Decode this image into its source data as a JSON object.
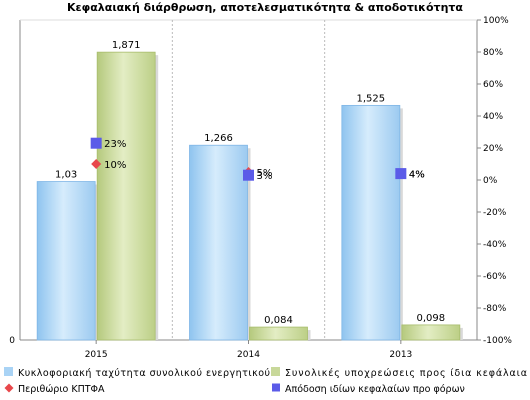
{
  "chart_data": {
    "type": "bar",
    "title": "Κεφαλαιακή διάρθρωση, αποτελεσματικότητα & αποδοτικότητα",
    "categories": [
      "2015",
      "2014",
      "2013"
    ],
    "left_axis": {
      "tick_labels": [
        "0"
      ],
      "ylim": [
        0,
        2.08
      ]
    },
    "right_axis": {
      "ylim": [
        -100,
        100
      ],
      "tick_labels": [
        "100%",
        "80%",
        "60%",
        "40%",
        "20%",
        "0%",
        "-20%",
        "-40%",
        "-60%",
        "-80%",
        "-100%"
      ]
    },
    "bar_series": [
      {
        "name": "Κυκλοφοριακή ταχύτητα συνολικού ενεργητικού",
        "values": [
          1.03,
          1.266,
          1.525
        ],
        "value_labels": [
          "1,03",
          "1,266",
          "1,525"
        ],
        "color": "#a9d3f5"
      },
      {
        "name": "Συνολικές υποχρεώσεις προς ίδια κεφάλαια",
        "values": [
          1.871,
          0.084,
          0.098
        ],
        "value_labels": [
          "1,871",
          "0,084",
          "0,098"
        ],
        "color": "#c8d89a"
      }
    ],
    "point_series": [
      {
        "name": "Περιθώριο ΚΠΤΦΑ",
        "values": [
          10,
          5,
          4
        ],
        "value_labels": [
          "10%",
          "5%",
          "4%"
        ],
        "color": "#e8474b",
        "marker": "diamond"
      },
      {
        "name": "Απόδοση ιδίων κεφαλαίων προ φόρων",
        "values": [
          23,
          3,
          4
        ],
        "value_labels": [
          "23%",
          "3%",
          "4%"
        ],
        "color": "#5b5be8",
        "marker": "square"
      }
    ],
    "legend_position": "bottom",
    "grid": "vertical dashed category separators"
  }
}
